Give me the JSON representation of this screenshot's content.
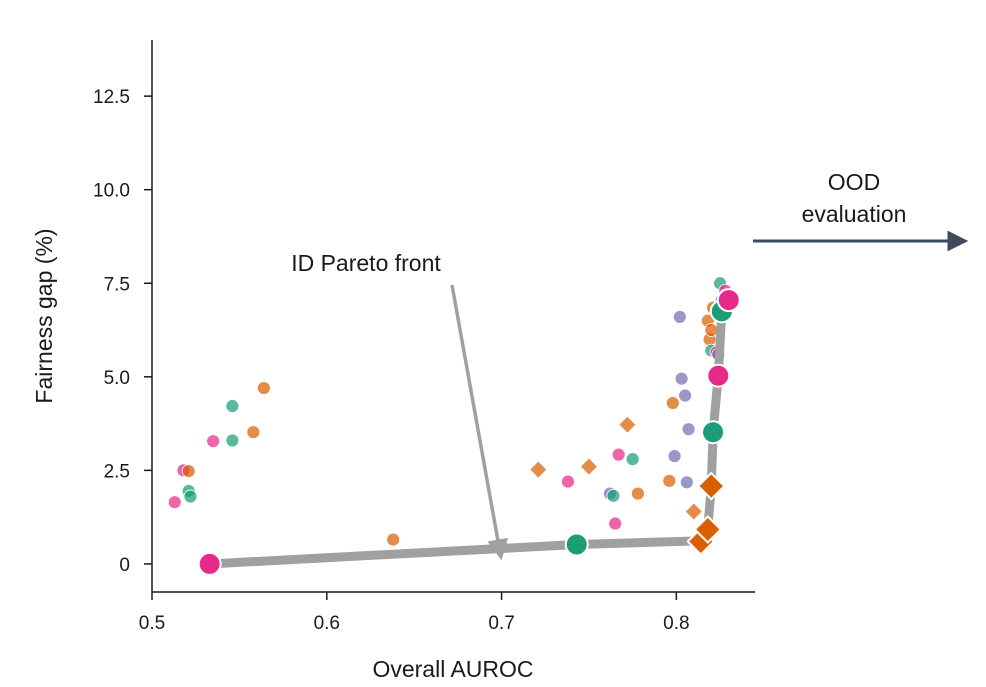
{
  "chart_data": {
    "type": "scatter",
    "xlabel": "Overall AUROC",
    "ylabel": "Fairness gap (%)",
    "xlim": [
      0.5,
      0.845
    ],
    "ylim": [
      -0.75,
      14.0
    ],
    "x_ticks": [
      {
        "value": 0.5,
        "label": "0.5"
      },
      {
        "value": 0.6,
        "label": "0.6"
      },
      {
        "value": 0.7,
        "label": "0.7"
      },
      {
        "value": 0.8,
        "label": "0.8"
      }
    ],
    "y_ticks": [
      {
        "value": 0,
        "label": "0"
      },
      {
        "value": 2.5,
        "label": "2.5"
      },
      {
        "value": 5.0,
        "label": "5.0"
      },
      {
        "value": 7.5,
        "label": "7.5"
      },
      {
        "value": 10.0,
        "label": "10.0"
      },
      {
        "value": 12.5,
        "label": "12.5"
      }
    ],
    "grid": false,
    "colors": {
      "teal": "#1b9e77",
      "orange": "#d95f02",
      "purple": "#7570b3",
      "pink": "#e7298a",
      "front": "#a0a0a0",
      "arrow": "#3d4b5c"
    },
    "pareto_front": {
      "label": "ID Pareto front",
      "points": [
        [
          0.533,
          0.0
        ],
        [
          0.743,
          0.52
        ],
        [
          0.815,
          0.62
        ],
        [
          0.818,
          0.95
        ],
        [
          0.82,
          2.08
        ],
        [
          0.821,
          3.52
        ],
        [
          0.824,
          5.03
        ],
        [
          0.826,
          6.75
        ],
        [
          0.83,
          7.05
        ]
      ]
    },
    "annotations": [
      {
        "text": "ID Pareto front"
      },
      {
        "lines": [
          "OOD",
          "evaluation"
        ]
      }
    ],
    "background_points": [
      {
        "x": 0.513,
        "y": 1.65,
        "shape": "circle",
        "color": "pink"
      },
      {
        "x": 0.518,
        "y": 2.5,
        "shape": "circle",
        "color": "pink"
      },
      {
        "x": 0.521,
        "y": 2.48,
        "shape": "circle",
        "color": "orange"
      },
      {
        "x": 0.521,
        "y": 1.95,
        "shape": "circle",
        "color": "teal"
      },
      {
        "x": 0.522,
        "y": 1.8,
        "shape": "circle",
        "color": "teal"
      },
      {
        "x": 0.535,
        "y": 3.28,
        "shape": "circle",
        "color": "pink"
      },
      {
        "x": 0.546,
        "y": 4.22,
        "shape": "circle",
        "color": "teal"
      },
      {
        "x": 0.546,
        "y": 3.3,
        "shape": "circle",
        "color": "teal"
      },
      {
        "x": 0.558,
        "y": 3.52,
        "shape": "circle",
        "color": "orange"
      },
      {
        "x": 0.564,
        "y": 4.7,
        "shape": "circle",
        "color": "orange"
      },
      {
        "x": 0.638,
        "y": 0.65,
        "shape": "circle",
        "color": "orange"
      },
      {
        "x": 0.721,
        "y": 2.52,
        "shape": "diamond",
        "color": "orange"
      },
      {
        "x": 0.738,
        "y": 2.2,
        "shape": "circle",
        "color": "pink"
      },
      {
        "x": 0.75,
        "y": 2.6,
        "shape": "diamond",
        "color": "orange"
      },
      {
        "x": 0.762,
        "y": 1.88,
        "shape": "circle",
        "color": "purple"
      },
      {
        "x": 0.764,
        "y": 1.82,
        "shape": "circle",
        "color": "teal"
      },
      {
        "x": 0.765,
        "y": 1.08,
        "shape": "circle",
        "color": "pink"
      },
      {
        "x": 0.767,
        "y": 2.92,
        "shape": "circle",
        "color": "pink"
      },
      {
        "x": 0.772,
        "y": 3.72,
        "shape": "diamond",
        "color": "orange"
      },
      {
        "x": 0.775,
        "y": 2.8,
        "shape": "circle",
        "color": "teal"
      },
      {
        "x": 0.778,
        "y": 1.88,
        "shape": "circle",
        "color": "orange"
      },
      {
        "x": 0.796,
        "y": 2.22,
        "shape": "circle",
        "color": "orange"
      },
      {
        "x": 0.798,
        "y": 4.3,
        "shape": "circle",
        "color": "orange"
      },
      {
        "x": 0.799,
        "y": 2.88,
        "shape": "circle",
        "color": "purple"
      },
      {
        "x": 0.802,
        "y": 6.6,
        "shape": "circle",
        "color": "purple"
      },
      {
        "x": 0.803,
        "y": 4.95,
        "shape": "circle",
        "color": "purple"
      },
      {
        "x": 0.805,
        "y": 4.5,
        "shape": "circle",
        "color": "purple"
      },
      {
        "x": 0.806,
        "y": 2.18,
        "shape": "circle",
        "color": "purple"
      },
      {
        "x": 0.807,
        "y": 3.6,
        "shape": "circle",
        "color": "purple"
      },
      {
        "x": 0.81,
        "y": 1.4,
        "shape": "diamond",
        "color": "orange"
      },
      {
        "x": 0.818,
        "y": 6.5,
        "shape": "circle",
        "color": "orange"
      },
      {
        "x": 0.819,
        "y": 6.0,
        "shape": "circle",
        "color": "orange"
      },
      {
        "x": 0.82,
        "y": 5.7,
        "shape": "circle",
        "color": "teal"
      },
      {
        "x": 0.82,
        "y": 6.25,
        "shape": "circle",
        "color": "orange"
      },
      {
        "x": 0.821,
        "y": 6.85,
        "shape": "circle",
        "color": "orange"
      },
      {
        "x": 0.822,
        "y": 5.05,
        "shape": "circle",
        "color": "purple"
      },
      {
        "x": 0.823,
        "y": 5.65,
        "shape": "circle",
        "color": "pink"
      },
      {
        "x": 0.824,
        "y": 5.6,
        "shape": "circle",
        "color": "purple"
      },
      {
        "x": 0.825,
        "y": 7.5,
        "shape": "circle",
        "color": "teal"
      },
      {
        "x": 0.826,
        "y": 7.05,
        "shape": "circle",
        "color": "purple"
      },
      {
        "x": 0.828,
        "y": 7.3,
        "shape": "circle",
        "color": "pink"
      }
    ],
    "front_points": [
      {
        "x": 0.533,
        "y": 0.0,
        "shape": "circle",
        "color": "pink"
      },
      {
        "x": 0.743,
        "y": 0.52,
        "shape": "circle",
        "color": "teal"
      },
      {
        "x": 0.814,
        "y": 0.6,
        "shape": "diamond",
        "color": "orange"
      },
      {
        "x": 0.818,
        "y": 0.92,
        "shape": "diamond",
        "color": "orange"
      },
      {
        "x": 0.82,
        "y": 2.08,
        "shape": "diamond",
        "color": "orange"
      },
      {
        "x": 0.821,
        "y": 3.52,
        "shape": "circle",
        "color": "teal"
      },
      {
        "x": 0.824,
        "y": 5.03,
        "shape": "circle",
        "color": "pink"
      },
      {
        "x": 0.826,
        "y": 6.75,
        "shape": "circle",
        "color": "teal"
      },
      {
        "x": 0.83,
        "y": 7.05,
        "shape": "circle",
        "color": "pink"
      }
    ]
  }
}
